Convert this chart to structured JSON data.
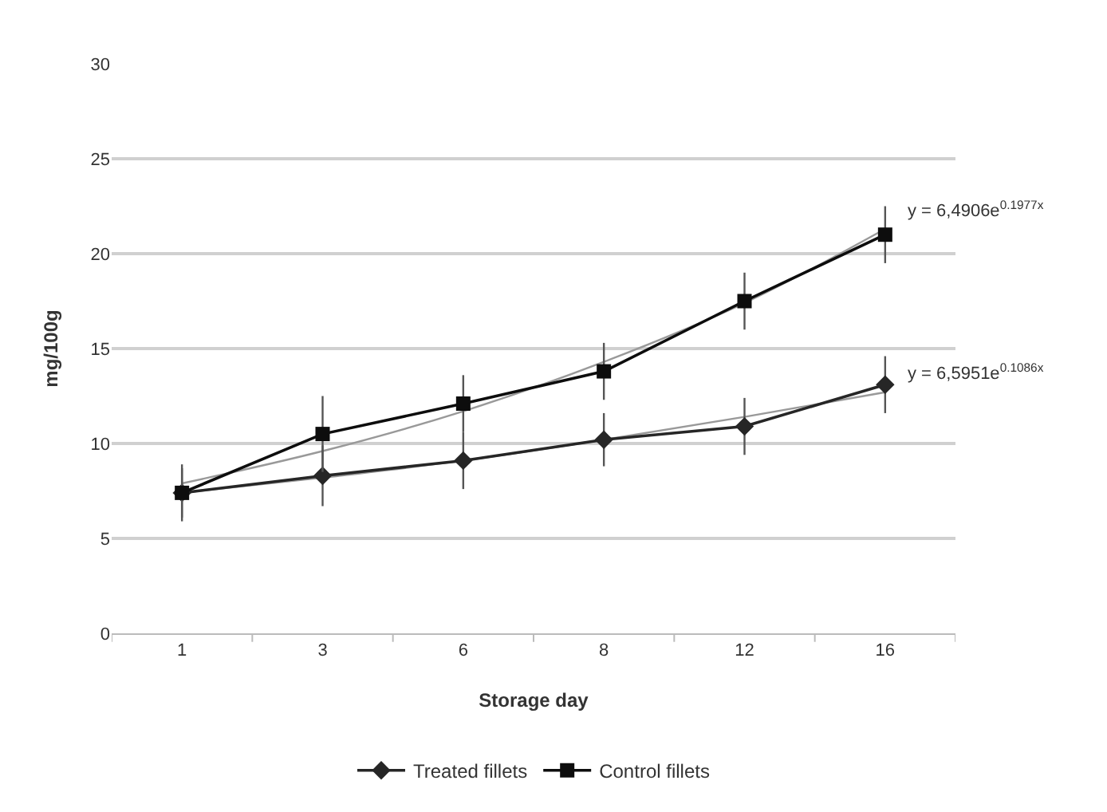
{
  "chart_data": {
    "type": "line",
    "xlabel": "Storage day",
    "ylabel": "mg/100g",
    "categories": [
      "1",
      "3",
      "6",
      "8",
      "12",
      "16"
    ],
    "series": [
      {
        "type": "line",
        "color": "#999999",
        "marker": "none",
        "values": [
          7.4,
          8.2,
          9.1,
          10.2,
          11.4,
          12.7
        ]
      },
      {
        "type": "line",
        "color": "#999999",
        "marker": "none",
        "values": [
          7.9,
          9.6,
          11.7,
          14.3,
          17.4,
          21.3
        ]
      },
      {
        "name": "Treated fillets",
        "color": "#262626",
        "marker": "diamond",
        "values": [
          7.4,
          8.3,
          9.1,
          10.2,
          10.9,
          13.1
        ],
        "errors": [
          1.3,
          1.6,
          1.5,
          1.4,
          1.5,
          1.5
        ]
      },
      {
        "name": "Control fillets",
        "color": "#0d0d0d",
        "marker": "square",
        "values": [
          7.4,
          10.5,
          12.1,
          13.8,
          17.5,
          21.0
        ],
        "errors": [
          1.5,
          2.0,
          1.5,
          1.5,
          1.5,
          1.5
        ]
      }
    ],
    "ylim": [
      0,
      30
    ],
    "yticks": [
      0,
      5,
      10,
      15,
      20,
      25,
      30
    ],
    "grid": "y",
    "legend": "bottom",
    "annotations": [
      {
        "text": "y = 6,5951e$^{0.1086x}$",
        "x": "16",
        "y": 12.7
      },
      {
        "text": "y = 6,4906e$^{0.1977x}$",
        "x": "16",
        "y": 21.3
      }
    ]
  }
}
